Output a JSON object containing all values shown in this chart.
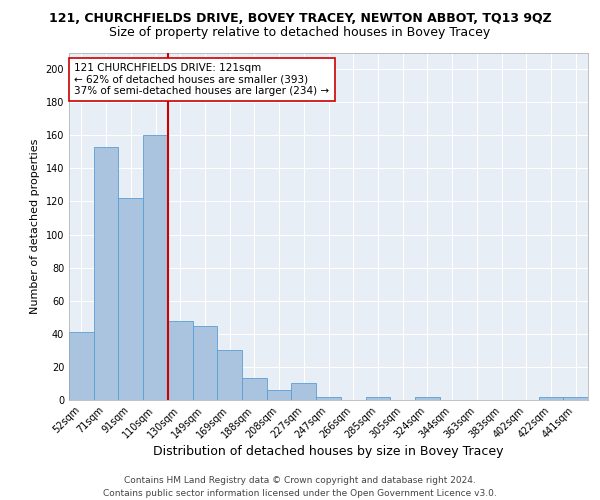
{
  "title": "121, CHURCHFIELDS DRIVE, BOVEY TRACEY, NEWTON ABBOT, TQ13 9QZ",
  "subtitle": "Size of property relative to detached houses in Bovey Tracey",
  "xlabel": "Distribution of detached houses by size in Bovey Tracey",
  "ylabel": "Number of detached properties",
  "categories": [
    "52sqm",
    "71sqm",
    "91sqm",
    "110sqm",
    "130sqm",
    "149sqm",
    "169sqm",
    "188sqm",
    "208sqm",
    "227sqm",
    "247sqm",
    "266sqm",
    "285sqm",
    "305sqm",
    "324sqm",
    "344sqm",
    "363sqm",
    "383sqm",
    "402sqm",
    "422sqm",
    "441sqm"
  ],
  "values": [
    41,
    153,
    122,
    160,
    48,
    45,
    30,
    13,
    6,
    10,
    2,
    0,
    2,
    0,
    2,
    0,
    0,
    0,
    0,
    2,
    2
  ],
  "bar_color": "#aac4e0",
  "bar_edge_color": "#5a9fd4",
  "vline_x": 3.5,
  "vline_color": "#cc0000",
  "annotation_text": "121 CHURCHFIELDS DRIVE: 121sqm\n← 62% of detached houses are smaller (393)\n37% of semi-detached houses are larger (234) →",
  "annotation_box_color": "#ffffff",
  "annotation_box_edge": "#cc0000",
  "ylim": [
    0,
    210
  ],
  "yticks": [
    0,
    20,
    40,
    60,
    80,
    100,
    120,
    140,
    160,
    180,
    200
  ],
  "background_color": "#e8eef5",
  "grid_color": "#ffffff",
  "footer": "Contains HM Land Registry data © Crown copyright and database right 2024.\nContains public sector information licensed under the Open Government Licence v3.0.",
  "title_fontsize": 9,
  "subtitle_fontsize": 9,
  "xlabel_fontsize": 9,
  "ylabel_fontsize": 8,
  "tick_fontsize": 7,
  "annotation_fontsize": 7.5,
  "footer_fontsize": 6.5
}
